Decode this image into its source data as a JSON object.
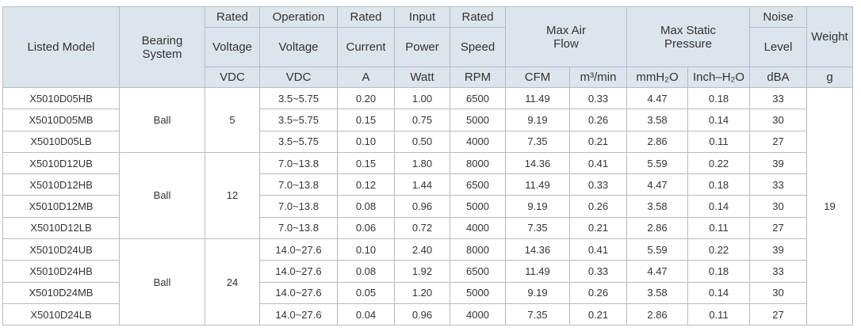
{
  "table": {
    "header": {
      "top": [
        "Listed Model",
        "Bearing System",
        "Rated",
        "Operation",
        "Rated",
        "Input",
        "Rated",
        "Max Air Flow",
        "Max Static Pressure",
        "Noise",
        "Weight"
      ],
      "middle": [
        "Voltage",
        "Voltage",
        "Current",
        "Power",
        "Speed",
        "Level"
      ],
      "units": [
        "VDC",
        "VDC",
        "A",
        "Watt",
        "RPM",
        "CFM",
        "m³/min",
        "mmH₂O",
        "Inch–H₂O",
        "dBA",
        "g"
      ]
    },
    "weight": "19",
    "groups": [
      {
        "bearing": "Ball",
        "voltage": "5",
        "rows": [
          [
            "X5010D05HB",
            "3.5~5.75",
            "0.20",
            "1.00",
            "6500",
            "11.49",
            "0.33",
            "4.47",
            "0.18",
            "33"
          ],
          [
            "X5010D05MB",
            "3.5~5.75",
            "0.15",
            "0.75",
            "5000",
            "9.19",
            "0.26",
            "3.58",
            "0.14",
            "30"
          ],
          [
            "X5010D05LB",
            "3.5~5.75",
            "0.10",
            "0.50",
            "4000",
            "7.35",
            "0.21",
            "2.86",
            "0.11",
            "27"
          ]
        ]
      },
      {
        "bearing": "Ball",
        "voltage": "12",
        "rows": [
          [
            "X5010D12UB",
            "7.0~13.8",
            "0.15",
            "1.80",
            "8000",
            "14.36",
            "0.41",
            "5.59",
            "0.22",
            "39"
          ],
          [
            "X5010D12HB",
            "7.0~13.8",
            "0.12",
            "1.44",
            "6500",
            "11.49",
            "0.33",
            "4.47",
            "0.18",
            "33"
          ],
          [
            "X5010D12MB",
            "7.0~13.8",
            "0.08",
            "0.96",
            "5000",
            "9.19",
            "0.26",
            "3.58",
            "0.14",
            "30"
          ],
          [
            "X5010D12LB",
            "7.0~13.8",
            "0.06",
            "0.72",
            "4000",
            "7.35",
            "0.21",
            "2.86",
            "0.11",
            "27"
          ]
        ]
      },
      {
        "bearing": "Ball",
        "voltage": "24",
        "rows": [
          [
            "X5010D24UB",
            "14.0~27.6",
            "0.10",
            "2.40",
            "8000",
            "14.36",
            "0.41",
            "5.59",
            "0.22",
            "39"
          ],
          [
            "X5010D24HB",
            "14.0~27.6",
            "0.08",
            "1.92",
            "6500",
            "11.49",
            "0.33",
            "4.47",
            "0.18",
            "33"
          ],
          [
            "X5010D24MB",
            "14.0~27.6",
            "0.05",
            "1.20",
            "5000",
            "9.19",
            "0.26",
            "3.58",
            "0.14",
            "30"
          ],
          [
            "X5010D24LB",
            "14.0~27.6",
            "0.04",
            "0.96",
            "4000",
            "7.35",
            "0.21",
            "2.86",
            "0.11",
            "27"
          ]
        ]
      }
    ]
  }
}
